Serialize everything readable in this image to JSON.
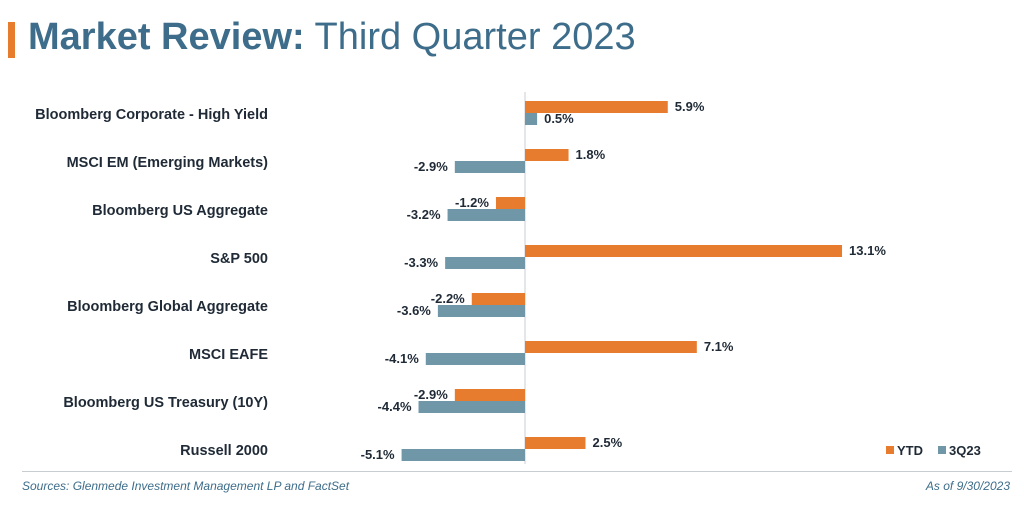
{
  "header": {
    "title_bold": "Market Review:",
    "title_light": "Third Quarter 2023"
  },
  "colors": {
    "accent": "#e87c2e",
    "title": "#3d6d8a",
    "ytd": "#e87c2e",
    "q3": "#6f97a8",
    "label_text": "#1f2a36"
  },
  "footer": {
    "source": "Sources: Glenmede Investment Management LP and FactSet",
    "as_of": "As of 9/30/2023"
  },
  "chart_data": {
    "type": "bar",
    "orientation": "horizontal",
    "categories": [
      "Bloomberg Corporate - High Yield",
      "MSCI EM (Emerging Markets)",
      "Bloomberg US Aggregate",
      "S&P 500",
      "Bloomberg Global Aggregate",
      "MSCI EAFE",
      "Bloomberg US Treasury (10Y)",
      "Russell 2000"
    ],
    "series": [
      {
        "name": "YTD",
        "values": [
          5.9,
          1.8,
          -1.2,
          13.1,
          -2.2,
          7.1,
          -2.9,
          2.5
        ],
        "labels": [
          "5.9%",
          "1.8%",
          "-1.2%",
          "13.1%",
          "-2.2%",
          "7.1%",
          "-2.9%",
          "2.5%"
        ]
      },
      {
        "name": "3Q23",
        "values": [
          0.5,
          -2.9,
          -3.2,
          -3.3,
          -3.6,
          -4.1,
          -4.4,
          -5.1
        ],
        "labels": [
          "0.5%",
          "-2.9%",
          "-3.2%",
          "-3.3%",
          "-3.6%",
          "-4.1%",
          "-4.4%",
          "-5.1%"
        ]
      }
    ],
    "legend_position": "bottom-right",
    "grid": false
  }
}
